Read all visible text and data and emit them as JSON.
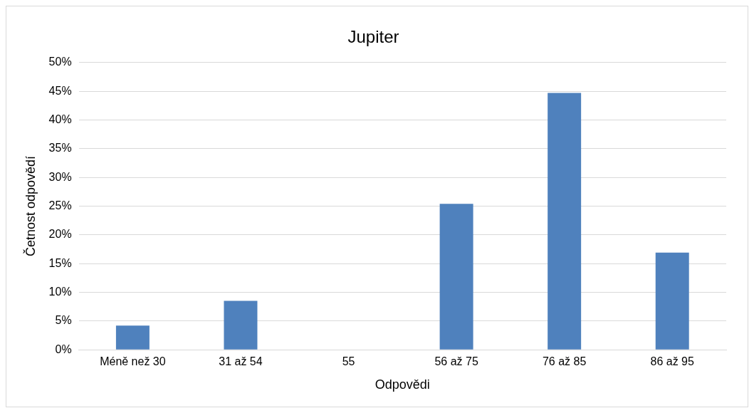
{
  "chart_data": {
    "type": "bar",
    "title": "Jupiter",
    "xlabel": "Odpovědi",
    "ylabel": "Četnost odpovědí",
    "categories": [
      "Méně než 30",
      "31 až 54",
      "55",
      "56 až 75",
      "76 až 85",
      "86 až 95"
    ],
    "values": [
      4.2,
      8.5,
      0,
      25.4,
      44.7,
      16.9
    ],
    "color": "#4f81bd",
    "ylim": [
      0,
      50
    ],
    "yticks": [
      {
        "value": 0,
        "label": "0%"
      },
      {
        "value": 5,
        "label": "5%"
      },
      {
        "value": 10,
        "label": "10%"
      },
      {
        "value": 15,
        "label": "15%"
      },
      {
        "value": 20,
        "label": "20%"
      },
      {
        "value": 25,
        "label": "25%"
      },
      {
        "value": 30,
        "label": "30%"
      },
      {
        "value": 35,
        "label": "35%"
      },
      {
        "value": 40,
        "label": "40%"
      },
      {
        "value": 45,
        "label": "45%"
      },
      {
        "value": 50,
        "label": "50%"
      }
    ],
    "grid": "y"
  }
}
